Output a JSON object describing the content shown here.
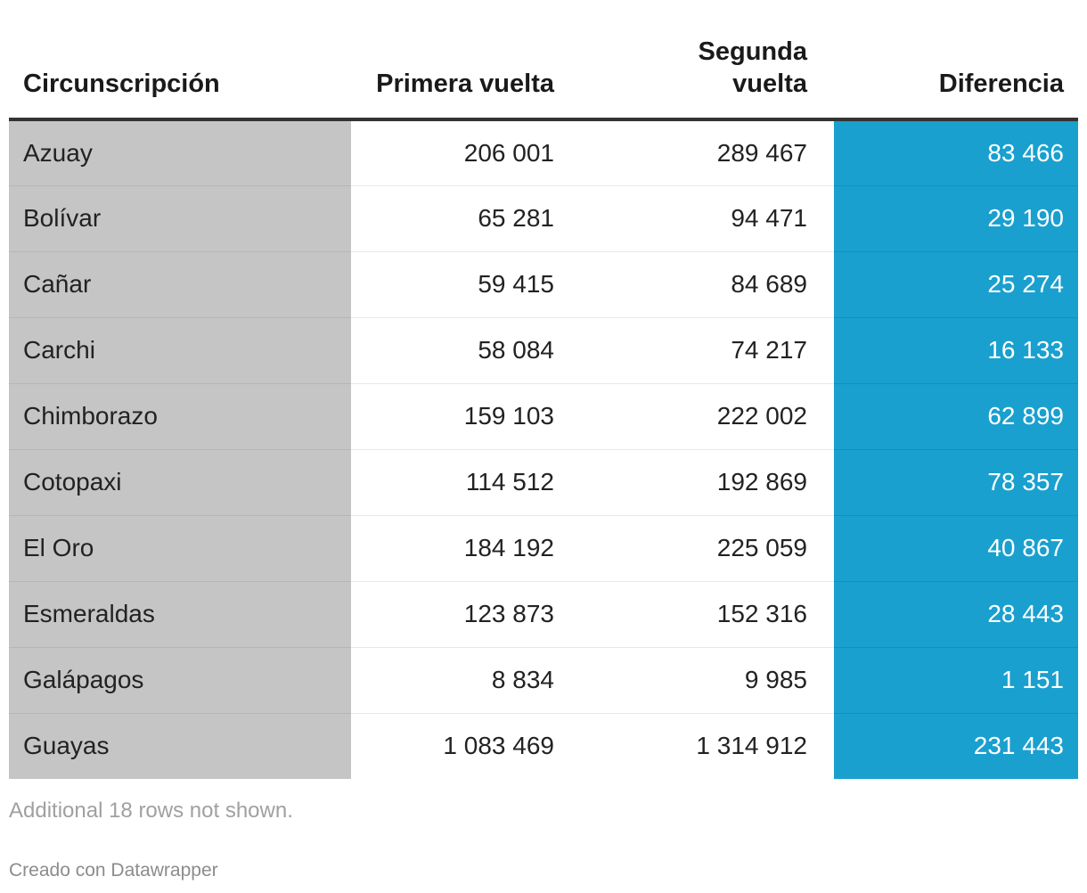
{
  "table": {
    "headers": [
      "Circunscripción",
      "Primera vuelta",
      "Segunda\nvuelta",
      "Diferencia"
    ],
    "rows": [
      [
        "Azuay",
        "206 001",
        "289 467",
        "83 466"
      ],
      [
        "Bolívar",
        "65 281",
        "94 471",
        "29 190"
      ],
      [
        "Cañar",
        "59 415",
        "84 689",
        "25 274"
      ],
      [
        "Carchi",
        "58 084",
        "74 217",
        "16 133"
      ],
      [
        "Chimborazo",
        "159 103",
        "222 002",
        "62 899"
      ],
      [
        "Cotopaxi",
        "114 512",
        "192 869",
        "78 357"
      ],
      [
        "El Oro",
        "184 192",
        "225 059",
        "40 867"
      ],
      [
        "Esmeraldas",
        "123 873",
        "152 316",
        "28 443"
      ],
      [
        "Galápagos",
        "8 834",
        "9 985",
        "1 151"
      ],
      [
        "Guayas",
        "1 083 469",
        "1 314 912",
        "231 443"
      ]
    ]
  },
  "footer": {
    "note": "Additional 18 rows not shown.",
    "credit": "Creado con Datawrapper"
  },
  "colors": {
    "name_column_bg": "#c5c5c5",
    "diff_column_bg": "#19a0cf",
    "header_rule": "#333333"
  }
}
